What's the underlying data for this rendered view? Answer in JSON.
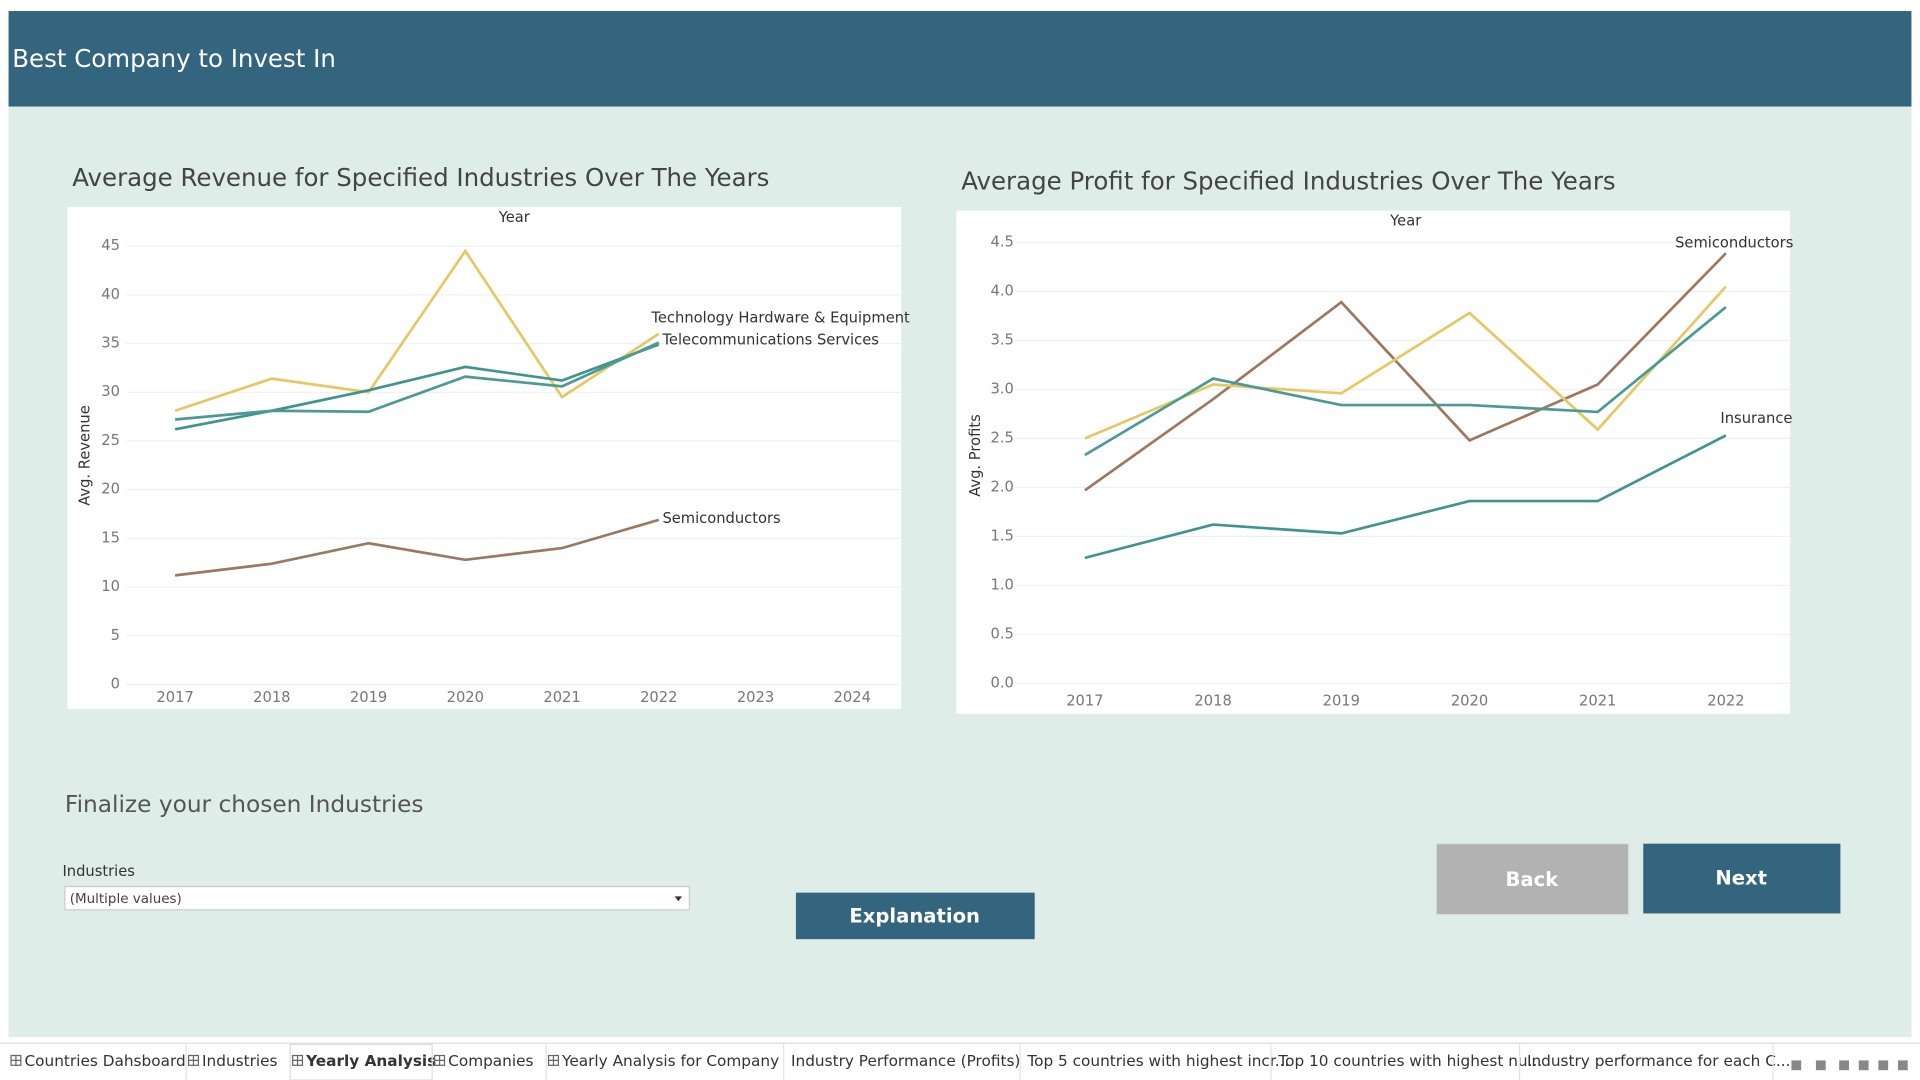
{
  "header": {
    "title": "Best Company to Invest In"
  },
  "chart_data": [
    {
      "type": "line",
      "title": "Average Revenue for Specified Industries Over The Years",
      "x_label": "Year",
      "y_label": "Avg. Revenue",
      "categories": [
        "2017",
        "2018",
        "2019",
        "2020",
        "2021",
        "2022",
        "2023",
        "2024"
      ],
      "ylim": [
        0,
        45
      ],
      "yticks": [
        0,
        5,
        10,
        15,
        20,
        25,
        30,
        35,
        40,
        45
      ],
      "grid": true,
      "series": [
        {
          "name": "Technology Hardware & Equipment",
          "color": "#e6c762",
          "values": [
            28.1,
            31.4,
            30.0,
            44.5,
            29.5,
            36.0,
            null,
            null
          ]
        },
        {
          "name": "Telecommunications Services",
          "color": "#3f9490",
          "values": [
            26.2,
            28.1,
            30.2,
            32.6,
            31.2,
            34.9,
            null,
            null
          ]
        },
        {
          "color": "#4a9a95",
          "values": [
            27.2,
            28.1,
            28.0,
            31.6,
            30.6,
            35.1,
            null,
            null
          ]
        },
        {
          "name": "Semiconductors",
          "color": "#9c7761",
          "values": [
            11.2,
            12.4,
            14.5,
            12.8,
            14.0,
            16.9,
            null,
            null
          ]
        }
      ]
    },
    {
      "type": "line",
      "title": "Average Profit for Specified Industries Over The Years",
      "x_label": "Year",
      "y_label": "Avg. Profits",
      "categories": [
        "2017",
        "2018",
        "2019",
        "2020",
        "2021",
        "2022"
      ],
      "ylim": [
        0,
        4.5
      ],
      "yticks": [
        {
          "value": 0,
          "label": "0.0"
        },
        0.5,
        {
          "value": 1,
          "label": "1.0"
        },
        1.5,
        {
          "value": 2,
          "label": "2.0"
        },
        2.5,
        {
          "value": 3,
          "label": "3.0"
        },
        3.5,
        {
          "value": 4,
          "label": "4.0"
        },
        4.5
      ],
      "grid": true,
      "series": [
        {
          "name": "Semiconductors",
          "color": "#9c7761",
          "values": [
            1.97,
            2.9,
            3.89,
            2.48,
            3.05,
            4.39
          ]
        },
        {
          "color": "#e6c762",
          "values": [
            2.5,
            3.05,
            2.96,
            3.78,
            2.59,
            4.05
          ]
        },
        {
          "color": "#4a9a95",
          "values": [
            2.33,
            3.11,
            2.84,
            2.84,
            2.77,
            3.84
          ]
        },
        {
          "name": "Insurance",
          "color": "#3f9490",
          "values": [
            1.28,
            1.62,
            1.53,
            1.86,
            1.86,
            2.53
          ]
        }
      ]
    }
  ],
  "filter": {
    "title": "Finalize your chosen Industries",
    "label": "Industries",
    "value": "(Multiple values)"
  },
  "buttons": {
    "explanation": "Explanation",
    "back": "Back",
    "next": "Next"
  },
  "tabs": [
    "Countries Dahsboard",
    "Industries",
    "Yearly Analysis",
    "Companies",
    "Yearly Analysis for Company",
    "Industry Performance (Profits)",
    "Top 5 countries with highest incr...",
    "Top 10 countries with highest nu...",
    "Industry performance for each C..."
  ]
}
